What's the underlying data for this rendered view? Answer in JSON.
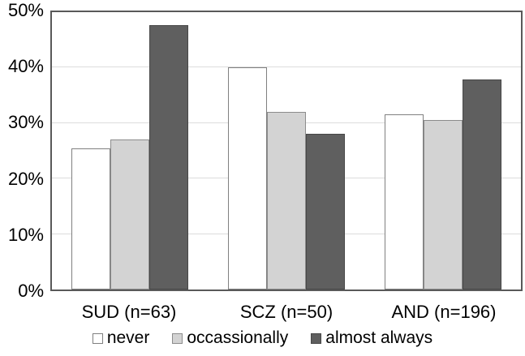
{
  "chart_data": {
    "type": "bar",
    "categories": [
      "SUD (n=63)",
      "SCZ (n=50)",
      "AND (n=196)"
    ],
    "series": [
      {
        "name": "never",
        "values": [
          25.4,
          40.0,
          31.6
        ],
        "fill": "#ffffff",
        "border": "#808080"
      },
      {
        "name": "occassionally",
        "values": [
          27.0,
          32.0,
          30.6
        ],
        "fill": "#d3d3d3",
        "border": "#8c8c8c"
      },
      {
        "name": "almost always",
        "values": [
          47.6,
          28.0,
          37.8
        ],
        "fill": "#5f5f5f",
        "border": "#474747"
      }
    ],
    "ylim": [
      0,
      50
    ],
    "ytick_step": 10,
    "yticks": [
      "0%",
      "10%",
      "20%",
      "30%",
      "40%",
      "50%"
    ],
    "grid": true,
    "legend_position": "bottom"
  },
  "colors": {
    "gridline": "#dcdcdc",
    "plot_border": "#595959",
    "text": "#000000",
    "background": "#ffffff"
  }
}
